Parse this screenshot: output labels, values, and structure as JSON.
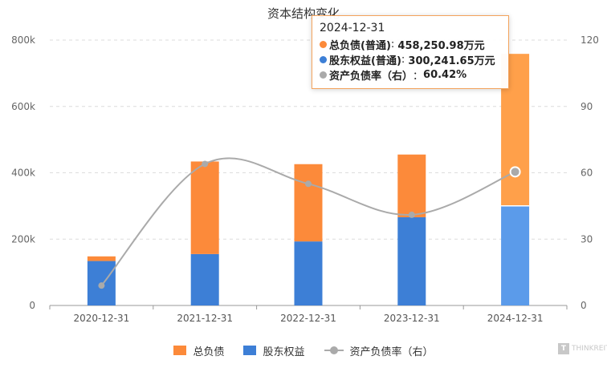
{
  "chart_data": {
    "type": "bar",
    "title": "资本结构变化",
    "categories": [
      "2020-12-31",
      "2021-12-31",
      "2022-12-31",
      "2023-12-31",
      "2024-12-31"
    ],
    "series": [
      {
        "name": "股东权益",
        "type": "bar",
        "axis": "left",
        "stack": "total",
        "color": "#3d7fd6",
        "values": [
          134000,
          155000,
          193000,
          266000,
          300241.65
        ]
      },
      {
        "name": "总负债",
        "type": "bar",
        "axis": "left",
        "stack": "total",
        "color": "#fc8a3a",
        "values": [
          14000,
          279000,
          233000,
          189000,
          458250.98
        ]
      },
      {
        "name": "资产负债率（右）",
        "type": "line",
        "axis": "right",
        "color": "#aaaaaa",
        "values": [
          9.0,
          64.0,
          55.0,
          41.0,
          60.42
        ]
      }
    ],
    "y_left": {
      "min": 0,
      "max": 800000,
      "ticks": [
        "0",
        "200k",
        "400k",
        "600k",
        "800k"
      ]
    },
    "y_right": {
      "min": 0,
      "max": 120,
      "ticks": [
        "0",
        "30",
        "60",
        "90",
        "120"
      ]
    },
    "legend": [
      "总负债",
      "股东权益",
      "资产负债率（右）"
    ],
    "legend_position": "bottom",
    "grid": "horizontal dashed",
    "highlight_index": 4,
    "highlight_colors": {
      "股东权益": "#5b9bea",
      "总负债": "#ffa04a"
    }
  },
  "tooltip": {
    "date": "2024-12-31",
    "rows": [
      {
        "label": "总负债(普通)",
        "value": "458,250.98万元",
        "color": "#fc8a3a"
      },
      {
        "label": "股东权益(普通)",
        "value": "300,241.65万元",
        "color": "#3d7fd6"
      },
      {
        "label": "资产负债率（右）",
        "value": "60.42%",
        "color": "#aaaaaa"
      }
    ]
  },
  "watermark": {
    "text": "THINKREIT",
    "icon": "T"
  }
}
